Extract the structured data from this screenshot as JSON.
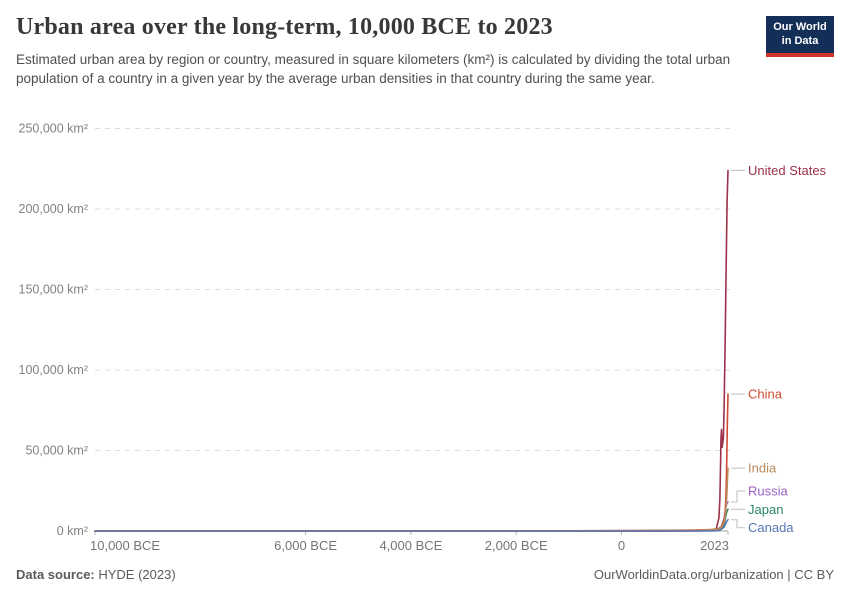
{
  "header": {
    "title": "Urban area over the long-term, 10,000 BCE to 2023",
    "subtitle": "Estimated urban area by region or country, measured in square kilometers (km²) is calculated by dividing the total urban population of a country in a given year by the average urban densities in that country during the same year.",
    "logo": {
      "line1": "Our World",
      "line2": "in Data"
    }
  },
  "chart_data": {
    "type": "line",
    "title": "Urban area over the long-term, 10,000 BCE to 2023",
    "xlabel": "",
    "ylabel": "km²",
    "x_domain": [
      -10000,
      2023
    ],
    "ylim": [
      0,
      250000
    ],
    "grid": "dashed-horizontal",
    "legend_position": "right-edge-labels",
    "yticks": [
      {
        "value": 0,
        "label": "0 km²"
      },
      {
        "value": 50000,
        "label": "50,000 km²"
      },
      {
        "value": 100000,
        "label": "100,000 km²"
      },
      {
        "value": 150000,
        "label": "150,000 km²"
      },
      {
        "value": 200000,
        "label": "200,000 km²"
      },
      {
        "value": 250000,
        "label": "250,000 km²"
      }
    ],
    "xticks": [
      {
        "value": -10000,
        "label": "10,000 BCE"
      },
      {
        "value": -6000,
        "label": "6,000 BCE"
      },
      {
        "value": -4000,
        "label": "4,000 BCE"
      },
      {
        "value": -2000,
        "label": "2,000 BCE"
      },
      {
        "value": 0,
        "label": "0"
      },
      {
        "value": 2023,
        "label": "2023"
      }
    ],
    "series": [
      {
        "name": "Japan",
        "color": "#2c8465",
        "points": [
          [
            -10000,
            0
          ],
          [
            -2000,
            5
          ],
          [
            0,
            20
          ],
          [
            1000,
            100
          ],
          [
            1500,
            300
          ],
          [
            1700,
            700
          ],
          [
            1800,
            900
          ],
          [
            1900,
            1800
          ],
          [
            1950,
            4000
          ],
          [
            1980,
            9000
          ],
          [
            2000,
            12000
          ],
          [
            2023,
            13500
          ]
        ]
      },
      {
        "name": "Russia",
        "color": "#9960c1",
        "points": [
          [
            -10000,
            0
          ],
          [
            -2000,
            5
          ],
          [
            0,
            10
          ],
          [
            1000,
            50
          ],
          [
            1500,
            150
          ],
          [
            1700,
            400
          ],
          [
            1800,
            900
          ],
          [
            1850,
            1500
          ],
          [
            1900,
            3000
          ],
          [
            1950,
            8000
          ],
          [
            1980,
            14000
          ],
          [
            2000,
            17000
          ],
          [
            2023,
            18000
          ]
        ]
      },
      {
        "name": "United States",
        "color": "#9b324b",
        "points": [
          [
            -10000,
            0
          ],
          [
            -2000,
            0
          ],
          [
            0,
            30
          ],
          [
            1000,
            60
          ],
          [
            1500,
            100
          ],
          [
            1700,
            300
          ],
          [
            1750,
            600
          ],
          [
            1800,
            1500
          ],
          [
            1850,
            8000
          ],
          [
            1870,
            20000
          ],
          [
            1880,
            40000
          ],
          [
            1890,
            58000
          ],
          [
            1900,
            63000
          ],
          [
            1912,
            52000
          ],
          [
            1925,
            55000
          ],
          [
            1935,
            58000
          ],
          [
            1950,
            80000
          ],
          [
            1970,
            120000
          ],
          [
            1990,
            170000
          ],
          [
            2005,
            205000
          ],
          [
            2023,
            224000
          ]
        ]
      },
      {
        "name": "China",
        "color": "#cf4b31",
        "points": [
          [
            -10000,
            0
          ],
          [
            -4000,
            5
          ],
          [
            -2000,
            30
          ],
          [
            0,
            250
          ],
          [
            500,
            350
          ],
          [
            1000,
            450
          ],
          [
            1500,
            700
          ],
          [
            1700,
            900
          ],
          [
            1800,
            1300
          ],
          [
            1850,
            1500
          ],
          [
            1900,
            2500
          ],
          [
            1950,
            7000
          ],
          [
            1970,
            12000
          ],
          [
            1980,
            18000
          ],
          [
            1990,
            30000
          ],
          [
            2000,
            45000
          ],
          [
            2010,
            65000
          ],
          [
            2023,
            85000
          ]
        ]
      },
      {
        "name": "India",
        "color": "#bb8a5b",
        "points": [
          [
            -10000,
            0
          ],
          [
            -2500,
            20
          ],
          [
            0,
            150
          ],
          [
            1000,
            300
          ],
          [
            1500,
            500
          ],
          [
            1700,
            800
          ],
          [
            1800,
            1100
          ],
          [
            1900,
            2200
          ],
          [
            1950,
            5500
          ],
          [
            1980,
            12000
          ],
          [
            2000,
            22000
          ],
          [
            2010,
            30000
          ],
          [
            2023,
            39000
          ]
        ]
      },
      {
        "name": "Canada",
        "color": "#5878b3",
        "points": [
          [
            -10000,
            0
          ],
          [
            1500,
            10
          ],
          [
            1700,
            20
          ],
          [
            1800,
            100
          ],
          [
            1850,
            300
          ],
          [
            1900,
            1200
          ],
          [
            1950,
            2500
          ],
          [
            1980,
            4500
          ],
          [
            2000,
            6000
          ],
          [
            2023,
            7000
          ]
        ]
      }
    ]
  },
  "footer": {
    "source_label": "Data source:",
    "source_value": " HYDE (2023)",
    "right": "OurWorldinData.org/urbanization | CC BY"
  },
  "colors": {
    "accent_navy": "#132f57",
    "accent_red": "#d0342c",
    "gridline": "#dcdcdc",
    "axis": "#a0a0a0",
    "tick_label": "#757575",
    "leader": "#c9c9c9"
  }
}
